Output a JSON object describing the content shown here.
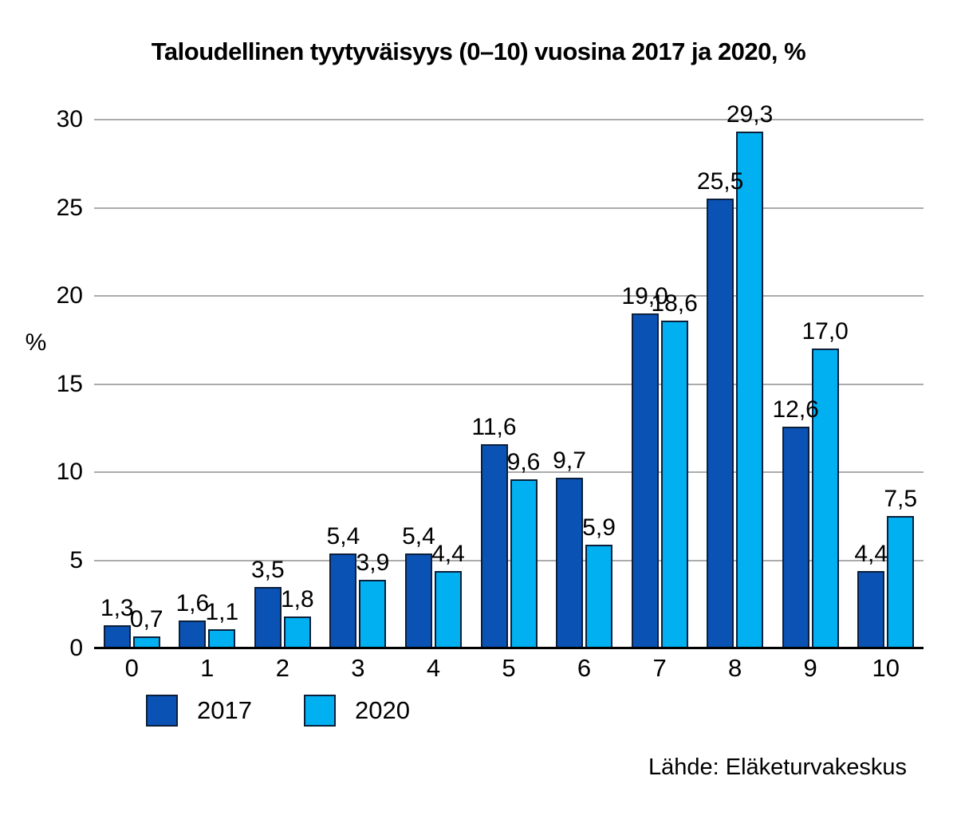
{
  "title": "Taloudellinen tyytyväisyys (0–10) vuosina 2017 ja 2020, %",
  "ylabel": "%",
  "source": "Lähde: Eläketurvakeskus",
  "colors": {
    "series_2017": "#0b52b5",
    "series_2020": "#00b0f0",
    "bar_outline": "#0b1f3a",
    "gridline": "#ababab",
    "axis": "#000000",
    "text": "#000000",
    "background": "#ffffff"
  },
  "chart_data": {
    "type": "bar",
    "title": "Taloudellinen tyytyväisyys (0–10) vuosina 2017 ja 2020, %",
    "xlabel": "",
    "ylabel": "%",
    "categories": [
      "0",
      "1",
      "2",
      "3",
      "4",
      "5",
      "6",
      "7",
      "8",
      "9",
      "10"
    ],
    "series": [
      {
        "name": "2017",
        "color": "#0b52b5",
        "values": [
          1.3,
          1.6,
          3.5,
          5.4,
          5.4,
          11.6,
          9.7,
          19.0,
          25.5,
          12.6,
          4.4
        ],
        "labels": [
          "1,3",
          "1,6",
          "3,5",
          "5,4",
          "5,4",
          "11,6",
          "9,7",
          "19,0",
          "25,5",
          "12,6",
          "4,4"
        ]
      },
      {
        "name": "2020",
        "color": "#00b0f0",
        "values": [
          0.7,
          1.1,
          1.8,
          3.9,
          4.4,
          9.6,
          5.9,
          18.6,
          29.3,
          17.0,
          7.5
        ],
        "labels": [
          "0,7",
          "1,1",
          "1,8",
          "3,9",
          "4,4",
          "9,6",
          "5,9",
          "18,6",
          "29,3",
          "17,0",
          "7,5"
        ]
      }
    ],
    "ylim": [
      0,
      30
    ],
    "yticks": [
      0,
      5,
      10,
      15,
      20,
      25,
      30
    ],
    "grid": true,
    "legend_position": "bottom-left",
    "source": "Lähde: Eläketurvakeskus"
  }
}
